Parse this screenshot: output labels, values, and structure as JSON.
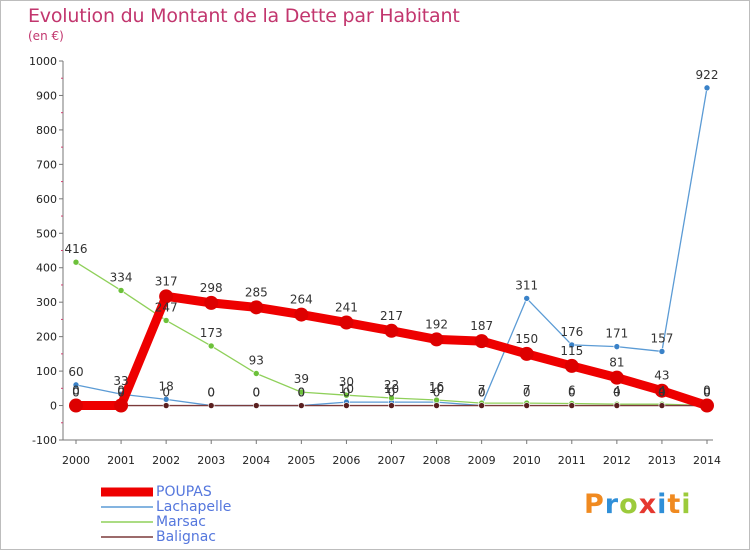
{
  "title": "Evolution du Montant de la Dette par Habitant",
  "subtitle": "(en €)",
  "logo": {
    "letters": [
      "P",
      "r",
      "o",
      "x",
      "i",
      "t",
      "i"
    ],
    "colors": [
      "#f08a20",
      "#2f8fd8",
      "#9ccb3b",
      "#e5382f",
      "#2f8fd8",
      "#f08a20",
      "#9ccb3b"
    ]
  },
  "legend": {
    "position": "bottom-left",
    "items": [
      {
        "label": "POUPAS",
        "color": "#ee0000"
      },
      {
        "label": "Lachapelle",
        "color": "#5b9bd5"
      },
      {
        "label": "Marsac",
        "color": "#8fd05a"
      },
      {
        "label": "Balignac",
        "color": "#7b3a3a"
      }
    ]
  },
  "chart_data": {
    "type": "line",
    "title": "Evolution du Montant de la Dette par Habitant",
    "subtitle": "(en €)",
    "x": [
      "2000",
      "2001",
      "2002",
      "2003",
      "2004",
      "2005",
      "2006",
      "2007",
      "2008",
      "2009",
      "2010",
      "2011",
      "2012",
      "2013",
      "2014"
    ],
    "ylim": [
      -100,
      1000
    ],
    "yticks": [
      "-100",
      "0",
      "100",
      "200",
      "300",
      "400",
      "500",
      "600",
      "700",
      "800",
      "900",
      "1000"
    ],
    "grid": false,
    "series": [
      {
        "name": "POUPAS",
        "color": "#ee0000",
        "marker": "#dd0000",
        "values": [
          0,
          0,
          317,
          298,
          285,
          264,
          241,
          217,
          192,
          187,
          150,
          115,
          81,
          43,
          0
        ],
        "labels": [
          "0",
          "0",
          "317",
          "298",
          "285",
          "264",
          "241",
          "217",
          "192",
          "187",
          "150",
          "115",
          "81",
          "43",
          "0"
        ]
      },
      {
        "name": "Lachapelle",
        "color": "#5b9bd5",
        "marker": "#3a82c8",
        "values": [
          60,
          33,
          18,
          0,
          0,
          0,
          10,
          10,
          10,
          0,
          311,
          176,
          171,
          157,
          922
        ],
        "labels": [
          "60",
          "33",
          "18",
          "0",
          "0",
          "0",
          "10",
          "10",
          "10",
          "0",
          "311",
          "176",
          "171",
          "157",
          "922"
        ]
      },
      {
        "name": "Marsac",
        "color": "#8fd05a",
        "marker": "#6cc13a",
        "values": [
          416,
          334,
          247,
          173,
          93,
          39,
          30,
          22,
          16,
          7,
          7,
          6,
          4,
          4,
          0
        ],
        "labels": [
          "416",
          "334",
          "247",
          "173",
          "93",
          "39",
          "30",
          "22",
          "16",
          "7",
          "7",
          "6",
          "4",
          "4",
          "0"
        ]
      },
      {
        "name": "Balignac",
        "color": "#7b3a3a",
        "marker": "#5a1f1f",
        "values": [
          0,
          0,
          0,
          0,
          0,
          0,
          0,
          0,
          0,
          0,
          0,
          0,
          0,
          0,
          0
        ],
        "labels": [
          "0",
          "0",
          "0",
          "0",
          "0",
          "0",
          "0",
          "0",
          "0",
          "0",
          "0",
          "0",
          "0",
          "0",
          "0"
        ]
      }
    ]
  }
}
